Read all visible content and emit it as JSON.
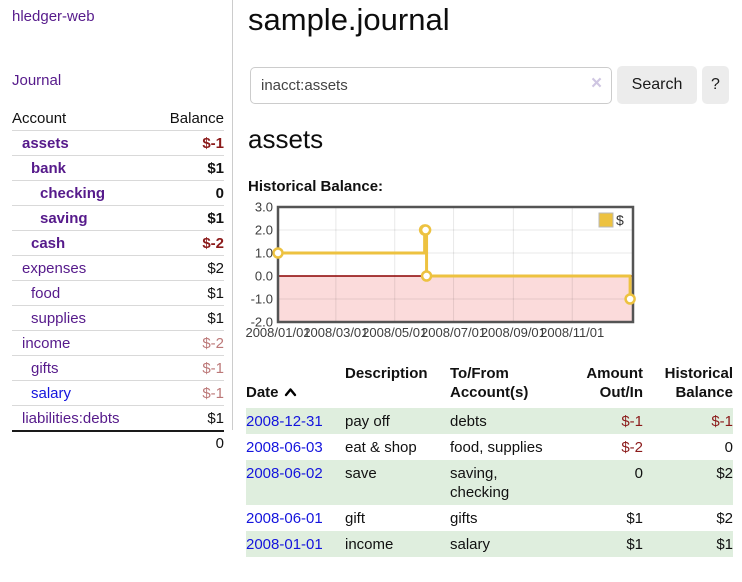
{
  "app": {
    "title": "hledger-web",
    "nav_journal": "Journal"
  },
  "sidebar": {
    "col_account": "Account",
    "col_balance": "Balance",
    "accounts": [
      {
        "name": "assets",
        "balance": "$-1"
      },
      {
        "name": "bank",
        "balance": "$1"
      },
      {
        "name": "checking",
        "balance": "0"
      },
      {
        "name": "saving",
        "balance": "$1"
      },
      {
        "name": "cash",
        "balance": "$-2"
      },
      {
        "name": "expenses",
        "balance": "$2"
      },
      {
        "name": "food",
        "balance": "$1"
      },
      {
        "name": "supplies",
        "balance": "$1"
      },
      {
        "name": "income",
        "balance": "$-2"
      },
      {
        "name": "gifts",
        "balance": "$-1"
      },
      {
        "name": "salary",
        "balance": "$-1"
      },
      {
        "name": "liabilities:debts",
        "balance": "$1"
      }
    ],
    "total": "0"
  },
  "main": {
    "title": "sample.journal",
    "search": {
      "value": "inacct:assets",
      "clear_icon": "×",
      "button_label": "Search",
      "help_label": "?"
    },
    "account_heading": "assets",
    "chart_heading": "Historical Balance:"
  },
  "chart_data": {
    "type": "line",
    "subtype": "step-after",
    "title": "Historical Balance",
    "legend_label": "$",
    "legend_position": "top-right",
    "grid": true,
    "ylim": [
      -2.0,
      3.0
    ],
    "x_domain": [
      "2008/01/01",
      "2009/01/03"
    ],
    "y_ticks": [
      "3.0",
      "2.0",
      "1.0",
      "0.0",
      "-1.0",
      "-2.0"
    ],
    "x_ticks": [
      {
        "label": "2008/01/01",
        "date": "2008/01/01"
      },
      {
        "label": "2008/03/01",
        "date": "2008/03/01"
      },
      {
        "label": "2008/05/01",
        "date": "2008/05/01"
      },
      {
        "label": "2008/07/01",
        "date": "2008/07/01"
      },
      {
        "label": "2008/09/01",
        "date": "2008/09/01"
      },
      {
        "label": "2008/11/01",
        "date": "2008/11/01"
      }
    ],
    "series": [
      {
        "name": "$",
        "points": [
          {
            "date": "2008/01/01",
            "value": 1
          },
          {
            "date": "2008/06/01",
            "value": 2
          },
          {
            "date": "2008/06/02",
            "value": 2
          },
          {
            "date": "2008/06/03",
            "value": 0
          },
          {
            "date": "2008/12/31",
            "value": -1
          }
        ]
      }
    ],
    "colors": {
      "series": "#edc240",
      "negative_fill": "#fbdbdb",
      "zero_line": "#8b0000",
      "plot_border": "#545454"
    }
  },
  "register": {
    "headers": {
      "date": "Date",
      "description": "Description",
      "accounts": "To/From\nAccount(s)",
      "amount": "Amount\nOut/In",
      "balance": "Historical\nBalance"
    },
    "rows": [
      {
        "date": "2008-12-31",
        "description": "pay off",
        "accounts": "debts",
        "amount": "$-1",
        "balance": "$-1"
      },
      {
        "date": "2008-06-03",
        "description": "eat & shop",
        "accounts": "food, supplies",
        "amount": "$-2",
        "balance": "0"
      },
      {
        "date": "2008-06-02",
        "description": "save",
        "accounts": "saving,\nchecking",
        "amount": "0",
        "balance": "$2"
      },
      {
        "date": "2008-06-01",
        "description": "gift",
        "accounts": "gifts",
        "amount": "$1",
        "balance": "$2"
      },
      {
        "date": "2008-01-01",
        "description": "income",
        "accounts": "salary",
        "amount": "$1",
        "balance": "$1"
      }
    ]
  }
}
